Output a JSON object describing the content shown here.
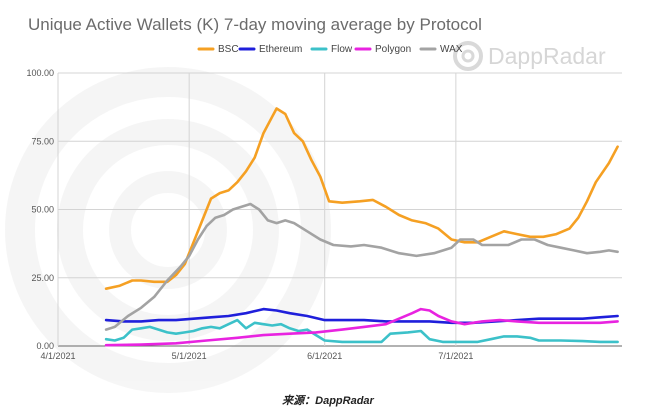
{
  "watermark": {
    "brand": "DappRadar"
  },
  "caption": "来源：DappRadar",
  "chart_data": {
    "type": "line",
    "title": "Unique Active Wallets (K) 7-day moving average by Protocol",
    "xlabel": "",
    "ylabel": "",
    "ylim": [
      0,
      100
    ],
    "xlim": [
      "2021-04-01",
      "2021-08-08"
    ],
    "y_ticks": [
      "0.00",
      "25.00",
      "50.00",
      "75.00",
      "100.00"
    ],
    "x_ticks": [
      {
        "label": "4/1/2021",
        "date": "2021-04-01"
      },
      {
        "label": "5/1/2021",
        "date": "2021-05-01"
      },
      {
        "label": "6/1/2021",
        "date": "2021-06-01"
      },
      {
        "label": "7/1/2021",
        "date": "2021-07-01"
      }
    ],
    "grid": true,
    "legend_position": "top",
    "series": [
      {
        "name": "BSC",
        "color": "#f5a023",
        "points": [
          [
            "2021-04-12",
            21
          ],
          [
            "2021-04-15",
            22
          ],
          [
            "2021-04-18",
            24
          ],
          [
            "2021-04-20",
            24
          ],
          [
            "2021-04-23",
            23.5
          ],
          [
            "2021-04-26",
            23.5
          ],
          [
            "2021-04-28",
            26
          ],
          [
            "2021-04-30",
            30
          ],
          [
            "2021-05-02",
            38
          ],
          [
            "2021-05-04",
            46
          ],
          [
            "2021-05-06",
            54
          ],
          [
            "2021-05-08",
            56
          ],
          [
            "2021-05-10",
            57
          ],
          [
            "2021-05-12",
            60
          ],
          [
            "2021-05-14",
            64
          ],
          [
            "2021-05-16",
            69
          ],
          [
            "2021-05-18",
            78
          ],
          [
            "2021-05-20",
            84
          ],
          [
            "2021-05-21",
            87
          ],
          [
            "2021-05-23",
            85
          ],
          [
            "2021-05-25",
            78
          ],
          [
            "2021-05-27",
            75
          ],
          [
            "2021-05-29",
            68
          ],
          [
            "2021-05-31",
            62
          ],
          [
            "2021-06-02",
            53
          ],
          [
            "2021-06-05",
            52.5
          ],
          [
            "2021-06-09",
            53
          ],
          [
            "2021-06-12",
            53.5
          ],
          [
            "2021-06-15",
            51
          ],
          [
            "2021-06-18",
            48
          ],
          [
            "2021-06-21",
            46
          ],
          [
            "2021-06-24",
            45
          ],
          [
            "2021-06-27",
            43
          ],
          [
            "2021-06-30",
            39
          ],
          [
            "2021-07-03",
            38
          ],
          [
            "2021-07-06",
            38
          ],
          [
            "2021-07-09",
            40
          ],
          [
            "2021-07-12",
            42
          ],
          [
            "2021-07-15",
            41
          ],
          [
            "2021-07-18",
            40
          ],
          [
            "2021-07-21",
            40
          ],
          [
            "2021-07-24",
            41
          ],
          [
            "2021-07-27",
            43
          ],
          [
            "2021-07-29",
            47
          ],
          [
            "2021-07-31",
            53
          ],
          [
            "2021-08-02",
            60
          ],
          [
            "2021-08-05",
            67
          ],
          [
            "2021-08-07",
            73
          ]
        ]
      },
      {
        "name": "Ethereum",
        "color": "#1f1fdb",
        "points": [
          [
            "2021-04-12",
            9.5
          ],
          [
            "2021-04-16",
            9
          ],
          [
            "2021-04-20",
            9
          ],
          [
            "2021-04-24",
            9.5
          ],
          [
            "2021-04-28",
            9.5
          ],
          [
            "2021-05-02",
            10
          ],
          [
            "2021-05-06",
            10.5
          ],
          [
            "2021-05-10",
            11
          ],
          [
            "2021-05-14",
            12
          ],
          [
            "2021-05-18",
            13.5
          ],
          [
            "2021-05-21",
            13
          ],
          [
            "2021-05-24",
            12
          ],
          [
            "2021-05-28",
            11
          ],
          [
            "2021-06-01",
            9.5
          ],
          [
            "2021-06-05",
            9.5
          ],
          [
            "2021-06-10",
            9.5
          ],
          [
            "2021-06-15",
            9
          ],
          [
            "2021-06-20",
            9
          ],
          [
            "2021-06-25",
            9
          ],
          [
            "2021-06-30",
            8.5
          ],
          [
            "2021-07-05",
            8.5
          ],
          [
            "2021-07-10",
            9
          ],
          [
            "2021-07-15",
            9.5
          ],
          [
            "2021-07-20",
            10
          ],
          [
            "2021-07-25",
            10
          ],
          [
            "2021-07-30",
            10
          ],
          [
            "2021-08-03",
            10.5
          ],
          [
            "2021-08-07",
            11
          ]
        ]
      },
      {
        "name": "Flow",
        "color": "#3cc1c9",
        "points": [
          [
            "2021-04-12",
            2.5
          ],
          [
            "2021-04-14",
            2
          ],
          [
            "2021-04-16",
            3
          ],
          [
            "2021-04-18",
            6
          ],
          [
            "2021-04-20",
            6.5
          ],
          [
            "2021-04-22",
            7
          ],
          [
            "2021-04-24",
            6
          ],
          [
            "2021-04-26",
            5
          ],
          [
            "2021-04-28",
            4.5
          ],
          [
            "2021-04-30",
            5
          ],
          [
            "2021-05-02",
            5.5
          ],
          [
            "2021-05-04",
            6.5
          ],
          [
            "2021-05-06",
            7
          ],
          [
            "2021-05-08",
            6.5
          ],
          [
            "2021-05-10",
            8
          ],
          [
            "2021-05-12",
            9.5
          ],
          [
            "2021-05-14",
            6.5
          ],
          [
            "2021-05-16",
            8.5
          ],
          [
            "2021-05-18",
            8
          ],
          [
            "2021-05-20",
            7.5
          ],
          [
            "2021-05-22",
            8
          ],
          [
            "2021-05-24",
            6.5
          ],
          [
            "2021-05-26",
            5.5
          ],
          [
            "2021-05-28",
            6
          ],
          [
            "2021-05-30",
            4
          ],
          [
            "2021-06-01",
            2
          ],
          [
            "2021-06-05",
            1.5
          ],
          [
            "2021-06-10",
            1.5
          ],
          [
            "2021-06-14",
            1.5
          ],
          [
            "2021-06-16",
            4.5
          ],
          [
            "2021-06-20",
            5
          ],
          [
            "2021-06-23",
            5.5
          ],
          [
            "2021-06-25",
            2.5
          ],
          [
            "2021-06-28",
            1.5
          ],
          [
            "2021-07-02",
            1.5
          ],
          [
            "2021-07-06",
            1.5
          ],
          [
            "2021-07-09",
            2.5
          ],
          [
            "2021-07-12",
            3.5
          ],
          [
            "2021-07-15",
            3.5
          ],
          [
            "2021-07-18",
            3
          ],
          [
            "2021-07-20",
            2
          ],
          [
            "2021-07-25",
            2
          ],
          [
            "2021-07-30",
            1.8
          ],
          [
            "2021-08-03",
            1.5
          ],
          [
            "2021-08-07",
            1.5
          ]
        ]
      },
      {
        "name": "Polygon",
        "color": "#e823e0",
        "points": [
          [
            "2021-04-12",
            0.3
          ],
          [
            "2021-04-20",
            0.5
          ],
          [
            "2021-04-28",
            1
          ],
          [
            "2021-05-05",
            2
          ],
          [
            "2021-05-12",
            3
          ],
          [
            "2021-05-18",
            4
          ],
          [
            "2021-05-24",
            4.5
          ],
          [
            "2021-05-30",
            5
          ],
          [
            "2021-06-05",
            6
          ],
          [
            "2021-06-10",
            7
          ],
          [
            "2021-06-15",
            8
          ],
          [
            "2021-06-18",
            10
          ],
          [
            "2021-06-21",
            12
          ],
          [
            "2021-06-23",
            13.5
          ],
          [
            "2021-06-25",
            13
          ],
          [
            "2021-06-27",
            11
          ],
          [
            "2021-06-30",
            9
          ],
          [
            "2021-07-03",
            8
          ],
          [
            "2021-07-07",
            9
          ],
          [
            "2021-07-11",
            9.5
          ],
          [
            "2021-07-15",
            9
          ],
          [
            "2021-07-20",
            8.5
          ],
          [
            "2021-07-25",
            8.5
          ],
          [
            "2021-07-30",
            8.5
          ],
          [
            "2021-08-03",
            8.5
          ],
          [
            "2021-08-07",
            9
          ]
        ]
      },
      {
        "name": "WAX",
        "color": "#a3a3a3",
        "points": [
          [
            "2021-04-12",
            6
          ],
          [
            "2021-04-14",
            7
          ],
          [
            "2021-04-17",
            11
          ],
          [
            "2021-04-20",
            14
          ],
          [
            "2021-04-23",
            18
          ],
          [
            "2021-04-26",
            24
          ],
          [
            "2021-04-29",
            29
          ],
          [
            "2021-05-01",
            33
          ],
          [
            "2021-05-03",
            39
          ],
          [
            "2021-05-05",
            44
          ],
          [
            "2021-05-07",
            47
          ],
          [
            "2021-05-09",
            48
          ],
          [
            "2021-05-11",
            50
          ],
          [
            "2021-05-13",
            51
          ],
          [
            "2021-05-15",
            52
          ],
          [
            "2021-05-17",
            50
          ],
          [
            "2021-05-19",
            46
          ],
          [
            "2021-05-21",
            45
          ],
          [
            "2021-05-23",
            46
          ],
          [
            "2021-05-25",
            45
          ],
          [
            "2021-05-28",
            42
          ],
          [
            "2021-05-31",
            39
          ],
          [
            "2021-06-03",
            37
          ],
          [
            "2021-06-07",
            36.5
          ],
          [
            "2021-06-10",
            37
          ],
          [
            "2021-06-14",
            36
          ],
          [
            "2021-06-18",
            34
          ],
          [
            "2021-06-22",
            33
          ],
          [
            "2021-06-26",
            34
          ],
          [
            "2021-06-30",
            36
          ],
          [
            "2021-07-02",
            39
          ],
          [
            "2021-07-05",
            39
          ],
          [
            "2021-07-07",
            37
          ],
          [
            "2021-07-10",
            37
          ],
          [
            "2021-07-13",
            37
          ],
          [
            "2021-07-16",
            39
          ],
          [
            "2021-07-19",
            39
          ],
          [
            "2021-07-22",
            37
          ],
          [
            "2021-07-25",
            36
          ],
          [
            "2021-07-28",
            35
          ],
          [
            "2021-07-31",
            34
          ],
          [
            "2021-08-03",
            34.5
          ],
          [
            "2021-08-05",
            35
          ],
          [
            "2021-08-07",
            34.5
          ]
        ]
      }
    ]
  }
}
